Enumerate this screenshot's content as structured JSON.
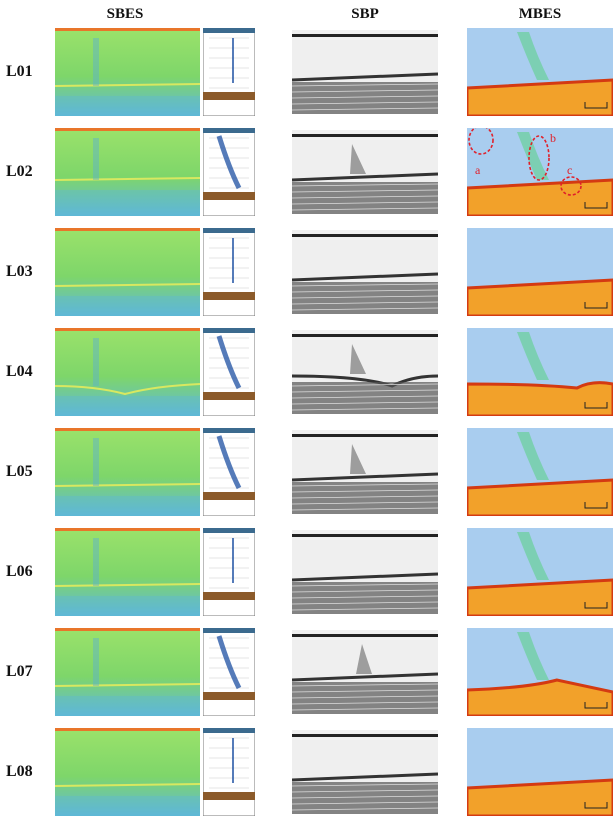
{
  "headers": {
    "sbes": "SBES",
    "sbp": "SBP",
    "mbes": "MBES"
  },
  "rows": [
    {
      "label": "L01",
      "plume": false,
      "annotations": false
    },
    {
      "label": "L02",
      "plume": true,
      "annotations": true
    },
    {
      "label": "L03",
      "plume": false,
      "annotations": false
    },
    {
      "label": "L04",
      "plume": true,
      "annotations": false
    },
    {
      "label": "L05",
      "plume": true,
      "annotations": false
    },
    {
      "label": "L06",
      "plume": false,
      "annotations": false
    },
    {
      "label": "L07",
      "plume": true,
      "annotations": false
    },
    {
      "label": "L08",
      "plume": false,
      "annotations": false
    }
  ],
  "annotation_labels": [
    "a",
    "b",
    "c"
  ],
  "colors": {
    "sbes_water": "#7ed66a",
    "sbes_bottom": "#5fb8d8",
    "mbes_water": "#a9cdef",
    "mbes_seabed_top": "#d43a12",
    "mbes_seabed": "#f2a12a",
    "annotation": "#e0202a"
  }
}
